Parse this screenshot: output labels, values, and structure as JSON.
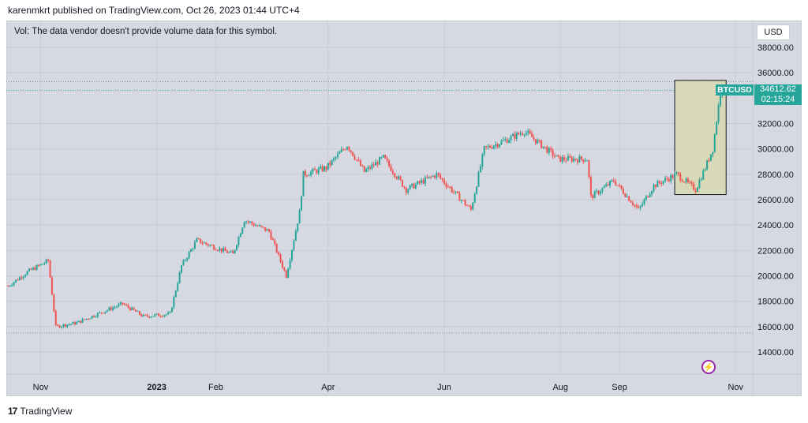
{
  "header": {
    "text": "karenmkrt published on TradingView.com, Oct 26, 2023 01:44 UTC+4"
  },
  "volume_note": "Vol: The data vendor doesn't provide volume data for this symbol.",
  "currency_button": "USD",
  "symbol": "BTCUSD",
  "last_price": "34612.62",
  "countdown": "02:15:24",
  "footer": {
    "logo_glyph": "17",
    "brand": "TradingView"
  },
  "colors": {
    "up": "#26a69a",
    "down": "#ef5350",
    "background": "#d7d9e2",
    "highlight": "#d8d8b0"
  },
  "icons": {
    "alert": "lightning-bolt-icon",
    "logo": "tradingview-logo-icon"
  },
  "chart_data": {
    "type": "candlestick",
    "title": "",
    "xlabel": "",
    "ylabel": "",
    "ylim": [
      12000,
      39000
    ],
    "y_ticks": [
      "14000.00",
      "16000.00",
      "18000.00",
      "20000.00",
      "22000.00",
      "24000.00",
      "26000.00",
      "28000.00",
      "30000.00",
      "32000.00",
      "36000.00",
      "38000.00"
    ],
    "x_ticks": [
      {
        "label": "Nov",
        "date": "2022-11-01"
      },
      {
        "label": "2023",
        "date": "2023-01-01"
      },
      {
        "label": "Feb",
        "date": "2023-02-01"
      },
      {
        "label": "Apr",
        "date": "2023-04-01"
      },
      {
        "label": "Jun",
        "date": "2023-06-01"
      },
      {
        "label": "Aug",
        "date": "2023-08-01"
      },
      {
        "label": "Sep",
        "date": "2023-09-01"
      },
      {
        "label": "Nov",
        "date": "2023-11-01"
      }
    ],
    "x_range": [
      "2022-10-14",
      "2023-11-10"
    ],
    "close_series": [
      {
        "date": "2022-10-15",
        "close": 19200
      },
      {
        "date": "2022-10-25",
        "close": 20300
      },
      {
        "date": "2022-10-30",
        "close": 20700
      },
      {
        "date": "2022-11-05",
        "close": 21200
      },
      {
        "date": "2022-11-09",
        "close": 16000
      },
      {
        "date": "2022-11-20",
        "close": 16300
      },
      {
        "date": "2022-12-01",
        "close": 17000
      },
      {
        "date": "2022-12-14",
        "close": 17800
      },
      {
        "date": "2022-12-25",
        "close": 16800
      },
      {
        "date": "2023-01-08",
        "close": 17000
      },
      {
        "date": "2023-01-14",
        "close": 20800
      },
      {
        "date": "2023-01-22",
        "close": 22800
      },
      {
        "date": "2023-02-10",
        "close": 21700
      },
      {
        "date": "2023-02-16",
        "close": 24400
      },
      {
        "date": "2023-03-01",
        "close": 23500
      },
      {
        "date": "2023-03-10",
        "close": 20000
      },
      {
        "date": "2023-03-17",
        "close": 25000
      },
      {
        "date": "2023-03-19",
        "close": 28000
      },
      {
        "date": "2023-03-31",
        "close": 28500
      },
      {
        "date": "2023-04-11",
        "close": 30300
      },
      {
        "date": "2023-04-20",
        "close": 28200
      },
      {
        "date": "2023-04-30",
        "close": 29300
      },
      {
        "date": "2023-05-12",
        "close": 26800
      },
      {
        "date": "2023-05-28",
        "close": 28000
      },
      {
        "date": "2023-06-15",
        "close": 25200
      },
      {
        "date": "2023-06-22",
        "close": 30000
      },
      {
        "date": "2023-07-05",
        "close": 30800
      },
      {
        "date": "2023-07-13",
        "close": 31400
      },
      {
        "date": "2023-07-31",
        "close": 29200
      },
      {
        "date": "2023-08-15",
        "close": 29200
      },
      {
        "date": "2023-08-17",
        "close": 26200
      },
      {
        "date": "2023-08-29",
        "close": 27500
      },
      {
        "date": "2023-09-11",
        "close": 25200
      },
      {
        "date": "2023-09-19",
        "close": 27100
      },
      {
        "date": "2023-10-01",
        "close": 28000
      },
      {
        "date": "2023-10-11",
        "close": 26800
      },
      {
        "date": "2023-10-16",
        "close": 28500
      },
      {
        "date": "2023-10-20",
        "close": 30000
      },
      {
        "date": "2023-10-24",
        "close": 34500
      },
      {
        "date": "2023-10-25",
        "close": 34612
      }
    ],
    "highlight_box": {
      "x_from": "2023-09-30",
      "x_to": "2023-10-27",
      "y_low": 26400,
      "y_high": 35400
    }
  }
}
